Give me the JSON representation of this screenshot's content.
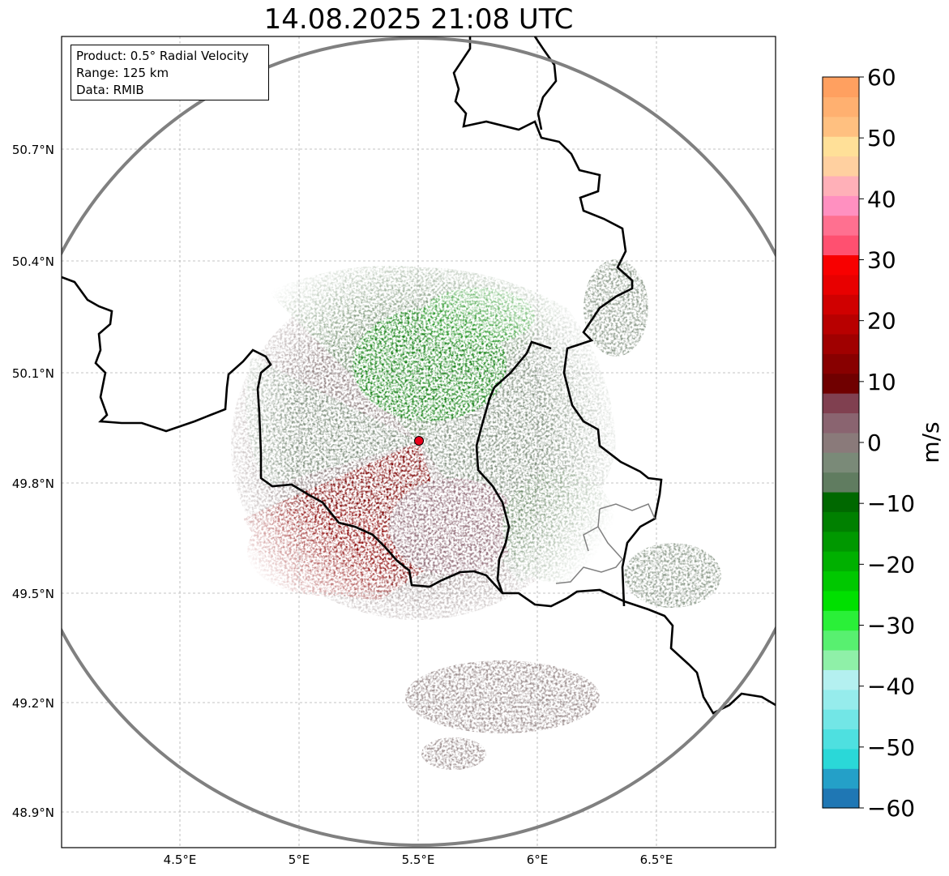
{
  "title": "14.08.2025 21:08 UTC",
  "info": {
    "product": "Product: 0.5° Radial Velocity",
    "range": "Range: 125 km",
    "data": "Data: RMIB"
  },
  "axes": {
    "lon_ticks": [
      "4.5°E",
      "5°E",
      "5.5°E",
      "6°E",
      "6.5°E"
    ],
    "lat_ticks": [
      "50.7°N",
      "50.4°N",
      "50.1°N",
      "49.8°N",
      "49.5°N",
      "49.2°N",
      "48.9°N"
    ]
  },
  "colorbar": {
    "label": "m/s",
    "ticks": [
      "60",
      "50",
      "40",
      "30",
      "20",
      "10",
      "0",
      "−10",
      "−20",
      "−30",
      "−40",
      "−50",
      "−60"
    ],
    "min": -60,
    "max": 60,
    "colors": [
      "#1f77b4",
      "#24a0c8",
      "#2ad8d8",
      "#4ee0e0",
      "#72e6e6",
      "#96ecec",
      "#b4f0f0",
      "#8ff0a8",
      "#58f070",
      "#2af038",
      "#00e000",
      "#00c800",
      "#00b000",
      "#009800",
      "#008000",
      "#006800",
      "#607c60",
      "#7a8a78",
      "#8a7a7a",
      "#8a6470",
      "#804050",
      "#700000",
      "#880000",
      "#a00000",
      "#b80000",
      "#d00000",
      "#e80000",
      "#f80000",
      "#ff5070",
      "#ff7090",
      "#ff90c0",
      "#ffb0b8",
      "#ffd0a0",
      "#ffe098",
      "#ffc080",
      "#ffb070",
      "#ffa060"
    ]
  },
  "colors": {
    "green_dark": "#0a7a0a",
    "green_light": "#2ecc2e",
    "gray_green": "#6e8a6a",
    "mauve": "#8a6e72",
    "red_dark": "#7a0000",
    "radar_site": "#e8001a",
    "range_ring": "#808080"
  }
}
